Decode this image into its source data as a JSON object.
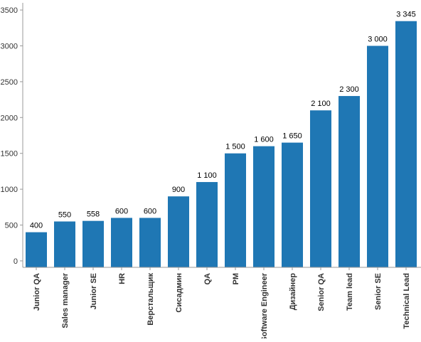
{
  "chart_data": {
    "type": "bar",
    "title": "",
    "xlabel": "",
    "ylabel": "",
    "categories": [
      "Junior QA",
      "Sales manager",
      "Junior SE",
      "HR",
      "Верстальщик",
      "Сисадмин",
      "QA",
      "PM",
      "Software Engineer",
      "Дизайнер",
      "Senior QA",
      "Team lead",
      "Senior SE",
      "Technical Lead"
    ],
    "values": [
      400,
      550,
      558,
      600,
      600,
      900,
      1100,
      1500,
      1600,
      1650,
      2100,
      2300,
      3000,
      3345
    ],
    "data_labels": [
      "400",
      "550",
      "558",
      "600",
      "600",
      "900",
      "1 100",
      "1 500",
      "1 600",
      "1 650",
      "2 100",
      "2 300",
      "3 000",
      "3 345"
    ],
    "yticks": [
      0,
      500,
      1000,
      1500,
      2000,
      2500,
      3000,
      3500
    ],
    "ytick_labels": [
      "0",
      "500",
      "1000",
      "1500",
      "2000",
      "2500",
      "3000",
      "3500"
    ],
    "ylim": [
      -90,
      3600
    ],
    "grid": false,
    "legend": "none",
    "bar_color": "#1f77b4"
  }
}
